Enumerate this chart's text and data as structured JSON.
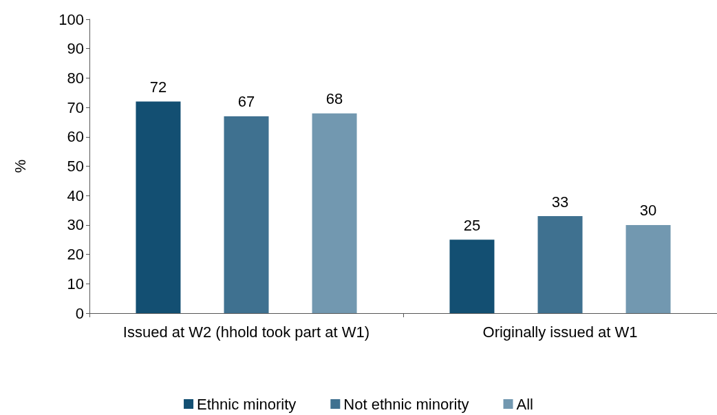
{
  "chart_data": {
    "type": "bar",
    "ylabel": "%",
    "categories": [
      "Issued at W2 (hhold took part at W1)",
      "Originally issued at W1"
    ],
    "series": [
      {
        "name": "Ethnic minority",
        "color": "#134f72",
        "values": [
          72,
          25
        ]
      },
      {
        "name": "Not ethnic minority",
        "color": "#3f7190",
        "values": [
          67,
          33
        ]
      },
      {
        "name": "All",
        "color": "#7298b0",
        "values": [
          68,
          30
        ]
      }
    ],
    "ylim": [
      0,
      100
    ],
    "yticks": [
      0,
      10,
      20,
      30,
      40,
      50,
      60,
      70,
      80,
      90,
      100
    ],
    "grid": false,
    "legend": "bottom",
    "data_labels": true
  }
}
